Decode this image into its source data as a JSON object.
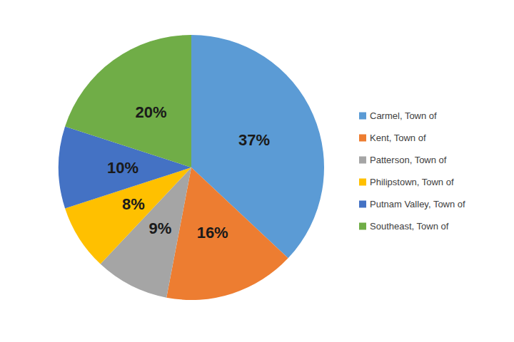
{
  "chart_data": {
    "type": "pie",
    "categories": [
      "Carmel, Town of",
      "Kent, Town of",
      "Patterson, Town of",
      "Philipstown, Town of",
      "Putnam Valley, Town of",
      "Southeast, Town of"
    ],
    "values": [
      37,
      16,
      9,
      8,
      10,
      20
    ],
    "value_labels": [
      "37%",
      "16%",
      "9%",
      "8%",
      "10%",
      "20%"
    ],
    "colors": [
      "#5b9bd5",
      "#ed7d31",
      "#a5a5a5",
      "#ffc000",
      "#4472c4",
      "#70ad47"
    ],
    "data_labels": true,
    "legend": "right"
  }
}
